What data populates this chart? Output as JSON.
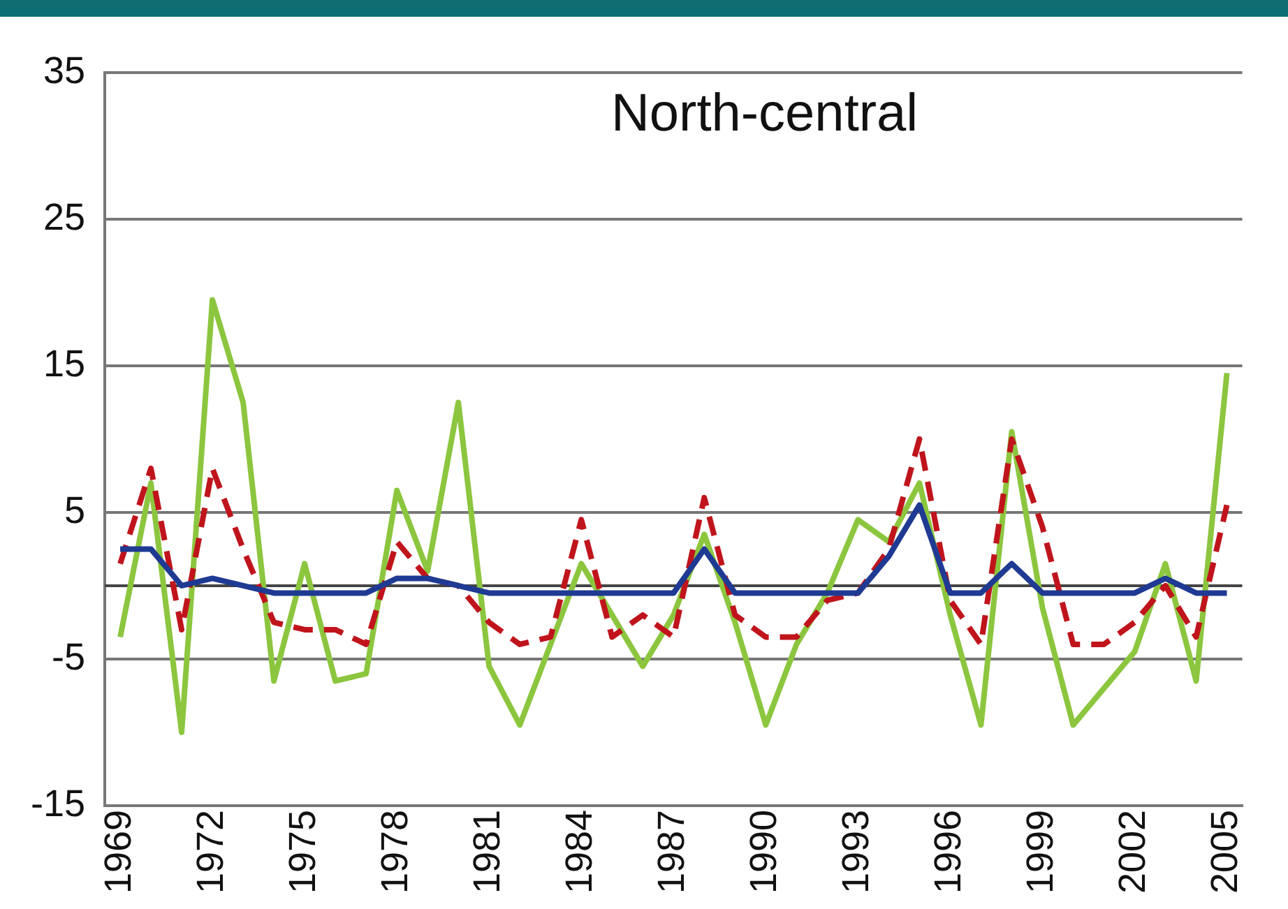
{
  "chart_data": {
    "type": "line",
    "title": "North-central",
    "categories": [
      "1969",
      null,
      null,
      "1972",
      null,
      null,
      "1975",
      null,
      null,
      "1978",
      null,
      null,
      "1981",
      null,
      null,
      "1984",
      null,
      null,
      "1987",
      null,
      null,
      "1990",
      null,
      null,
      "1993",
      null,
      null,
      "1996",
      null,
      null,
      "1999",
      null,
      null,
      "2002",
      null,
      null,
      "2005"
    ],
    "series": [
      {
        "color": "#1f3a93",
        "values": [
          2.5,
          2.5,
          0,
          0.5,
          0,
          -0.5,
          -0.5,
          -0.5,
          -0.5,
          0.5,
          0.5,
          0,
          -0.5,
          -0.5,
          -0.5,
          -0.5,
          -0.5,
          -0.5,
          -0.5,
          2.5,
          -0.5,
          -0.5,
          -0.5,
          -0.5,
          -0.5,
          2,
          5.5,
          -0.5,
          -0.5,
          1.5,
          -0.5,
          -0.5,
          -0.5,
          -0.5,
          0.5,
          -0.5,
          -0.5
        ]
      },
      {
        "color": "#c0141c",
        "line_style": "dashed",
        "values": [
          1.5,
          8,
          -3,
          8,
          2.5,
          -2.5,
          -3,
          -3,
          -4,
          3,
          0.5,
          0,
          -2.5,
          -4,
          -3.5,
          4.5,
          -3.5,
          -2,
          -3.5,
          6,
          -2,
          -3.5,
          -3.5,
          -1,
          -0.5,
          2.5,
          10,
          -1,
          -4,
          10,
          4,
          -4,
          -4,
          -2.5,
          0,
          -3.5,
          5.5
        ]
      },
      {
        "color": "#8cc63f",
        "values": [
          -3.5,
          7,
          -10,
          19.5,
          12.5,
          -6.5,
          1.5,
          -6.5,
          -6,
          6.5,
          1,
          12.5,
          -5.5,
          -9.5,
          -4,
          1.5,
          -2,
          -5.5,
          -2,
          3.5,
          -2.5,
          -9.5,
          -4,
          -0.5,
          4.5,
          3,
          7,
          -2,
          -9.5,
          10.5,
          -1.5,
          -9.5,
          -7,
          -4.5,
          1.5,
          -6.5,
          14.5
        ]
      }
    ],
    "ref_lines": [
      {
        "axis": "y",
        "value": 0,
        "color": "#444444"
      }
    ],
    "ylim": [
      -15,
      35
    ],
    "yticks": [
      -15,
      -5,
      5,
      15,
      25,
      35
    ],
    "grid": "y",
    "legend": false,
    "marker": "none",
    "line_style": "solid"
  }
}
